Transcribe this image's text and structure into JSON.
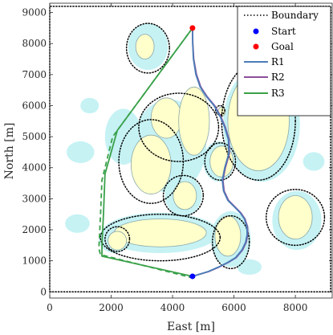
{
  "chart_data": {
    "type": "line",
    "xlabel": "East [m]",
    "ylabel": "North [m]",
    "xlim": [
      0,
      9200
    ],
    "ylim": [
      -200,
      9300
    ],
    "xticks": [
      0,
      2000,
      4000,
      6000,
      8000
    ],
    "yticks": [
      0,
      1000,
      2000,
      3000,
      4000,
      5000,
      6000,
      7000,
      8000,
      9000
    ],
    "legend_position": "top-right",
    "boundary": {
      "name": "Boundary",
      "color": "#000000",
      "x": [
        0,
        9150,
        9150,
        0,
        0
      ],
      "y": [
        0,
        0,
        9200,
        9200,
        0
      ]
    },
    "start": {
      "name": "Start",
      "x": 4650,
      "y": 500,
      "color": "#0000ff"
    },
    "goal": {
      "name": "Goal",
      "x": 4650,
      "y": 8500,
      "color": "#ff0000"
    },
    "series": [
      {
        "name": "R1",
        "color": "#4a7db8",
        "dash": false,
        "x": [
          4650,
          4655,
          4680,
          4760,
          4900,
          5100,
          5350,
          5550,
          5700,
          5820,
          5830,
          5700,
          5620,
          5660,
          5800,
          6000,
          6200,
          6340,
          6420,
          6430,
          6380,
          6260,
          6050,
          5800,
          5500,
          5150,
          4850,
          4650
        ],
        "y": [
          8500,
          8000,
          7500,
          7000,
          6600,
          6300,
          6000,
          5650,
          5300,
          4900,
          4450,
          4000,
          3600,
          3250,
          2950,
          2750,
          2550,
          2350,
          2100,
          1850,
          1600,
          1350,
          1100,
          950,
          800,
          650,
          560,
          500
        ]
      },
      {
        "name": "R2",
        "color": "#8b4f9b",
        "dash": false,
        "x": [
          4650,
          4660,
          4690,
          4780,
          4920,
          5120,
          5370,
          5570,
          5720,
          5840,
          5850,
          5720,
          5640,
          5680,
          5820,
          6020,
          6220,
          6360,
          6440,
          6450,
          6400,
          6280,
          6070,
          5820,
          5520,
          5170,
          4860,
          4650
        ],
        "y": [
          8500,
          8000,
          7500,
          7000,
          6600,
          6300,
          6000,
          5650,
          5300,
          4900,
          4450,
          4000,
          3600,
          3250,
          2950,
          2750,
          2550,
          2350,
          2100,
          1850,
          1600,
          1350,
          1100,
          950,
          800,
          650,
          560,
          500
        ]
      },
      {
        "name": "R3",
        "color": "#3aa14a",
        "dash": false,
        "x": [
          4650,
          2200,
          1800,
          1750,
          1700,
          1700,
          4650
        ],
        "y": [
          8500,
          5200,
          3800,
          2500,
          1500,
          1150,
          500
        ]
      },
      {
        "name": "",
        "color": "#3aa14a",
        "dash": true,
        "x": [
          4650,
          2050,
          1700,
          1650,
          1600,
          1650,
          4650
        ],
        "y": [
          8500,
          5000,
          3600,
          2400,
          1400,
          1200,
          450
        ]
      }
    ],
    "islands": [
      {
        "cx": 3100,
        "cy": 7900,
        "rx": 300,
        "ry": 400
      },
      {
        "cx": 3800,
        "cy": 5600,
        "rx": 500,
        "ry": 650
      },
      {
        "cx": 4700,
        "cy": 5500,
        "rx": 500,
        "ry": 1100
      },
      {
        "cx": 3300,
        "cy": 4100,
        "rx": 650,
        "ry": 950
      },
      {
        "cx": 5600,
        "cy": 4200,
        "rx": 380,
        "ry": 500
      },
      {
        "cx": 6800,
        "cy": 5500,
        "rx": 1000,
        "ry": 1600
      },
      {
        "cx": 4400,
        "cy": 3100,
        "rx": 380,
        "ry": 450
      },
      {
        "cx": 8000,
        "cy": 2400,
        "rx": 550,
        "ry": 700
      },
      {
        "cx": 3600,
        "cy": 1900,
        "rx": 1500,
        "ry": 450
      },
      {
        "cx": 5800,
        "cy": 1800,
        "rx": 420,
        "ry": 650
      },
      {
        "cx": 2200,
        "cy": 1650,
        "rx": 300,
        "ry": 300
      },
      {
        "cx": 5600,
        "cy": 5800,
        "rx": 120,
        "ry": 150
      }
    ],
    "shallows": [
      {
        "cx": 3200,
        "cy": 7900,
        "rx": 650,
        "ry": 750
      },
      {
        "cx": 2400,
        "cy": 5000,
        "rx": 600,
        "ry": 900
      },
      {
        "cx": 3900,
        "cy": 4700,
        "rx": 1200,
        "ry": 1500
      },
      {
        "cx": 5500,
        "cy": 4200,
        "rx": 500,
        "ry": 650
      },
      {
        "cx": 6900,
        "cy": 5400,
        "rx": 1250,
        "ry": 1850
      },
      {
        "cx": 4350,
        "cy": 3100,
        "rx": 600,
        "ry": 650
      },
      {
        "cx": 8050,
        "cy": 2300,
        "rx": 800,
        "ry": 950
      },
      {
        "cx": 3600,
        "cy": 1900,
        "rx": 1900,
        "ry": 650
      },
      {
        "cx": 5900,
        "cy": 1700,
        "rx": 650,
        "ry": 900
      },
      {
        "cx": 2100,
        "cy": 1700,
        "rx": 500,
        "ry": 450
      },
      {
        "cx": 1000,
        "cy": 4500,
        "rx": 450,
        "ry": 350
      },
      {
        "cx": 900,
        "cy": 2200,
        "rx": 400,
        "ry": 300
      },
      {
        "cx": 1300,
        "cy": 6000,
        "rx": 300,
        "ry": 250
      },
      {
        "cx": 6500,
        "cy": 800,
        "rx": 400,
        "ry": 250
      },
      {
        "cx": 8600,
        "cy": 4200,
        "rx": 350,
        "ry": 300
      }
    ],
    "exclusion_zones": [
      {
        "cx": 3200,
        "cy": 7850,
        "rx": 700,
        "ry": 800
      },
      {
        "cx": 4200,
        "cy": 5300,
        "rx": 1300,
        "ry": 1100
      },
      {
        "cx": 3300,
        "cy": 4200,
        "rx": 1050,
        "ry": 1350
      },
      {
        "cx": 5550,
        "cy": 4200,
        "rx": 500,
        "ry": 600
      },
      {
        "cx": 6800,
        "cy": 5500,
        "rx": 1200,
        "ry": 1900
      },
      {
        "cx": 4350,
        "cy": 3100,
        "rx": 650,
        "ry": 650
      },
      {
        "cx": 8000,
        "cy": 2400,
        "rx": 950,
        "ry": 900
      },
      {
        "cx": 3600,
        "cy": 1750,
        "rx": 1950,
        "ry": 750
      },
      {
        "cx": 5900,
        "cy": 1600,
        "rx": 600,
        "ry": 850
      },
      {
        "cx": 2200,
        "cy": 1700,
        "rx": 400,
        "ry": 400
      },
      {
        "cx": 5550,
        "cy": 5850,
        "rx": 150,
        "ry": 150
      }
    ],
    "colors": {
      "land": "#ffffcc",
      "land_edge": "#8aa8a8",
      "shallow": "#c6f2f4",
      "zone": "#000000"
    }
  }
}
